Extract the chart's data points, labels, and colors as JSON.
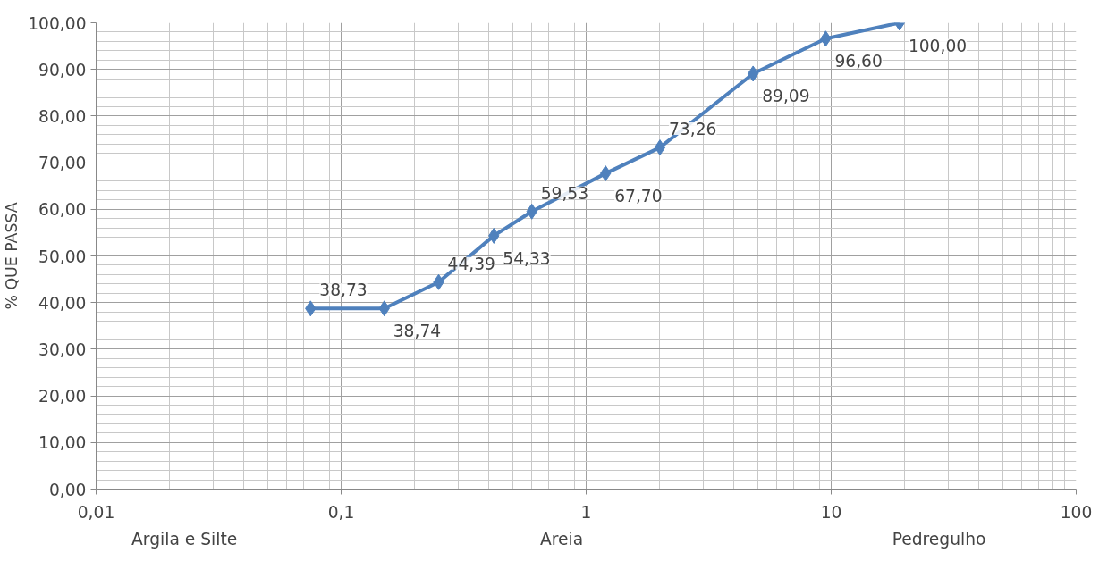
{
  "chart_data": {
    "type": "line",
    "ylabel": "% QUE PASSA",
    "x": [
      0.075,
      0.15,
      0.25,
      0.42,
      0.6,
      1.2,
      2.0,
      4.8,
      9.5,
      19
    ],
    "series": [
      {
        "color": "#4f81bd",
        "values": [
          38.73,
          38.74,
          44.39,
          54.33,
          59.53,
          67.7,
          73.26,
          89.09,
          96.6,
          100.0
        ],
        "value_labels": [
          "38,73",
          "38,74",
          "44,39",
          "54,33",
          "59,53",
          "67,70",
          "73,26",
          "89,09",
          "96,60",
          "100,00"
        ]
      }
    ],
    "log": "x",
    "xlim": [
      0.01,
      100
    ],
    "xticks": [
      {
        "value": 0.01,
        "label": "0,01"
      },
      {
        "value": 0.1,
        "label": "0,1"
      },
      1,
      10,
      100
    ],
    "ylim": [
      0,
      100
    ],
    "yticks": [
      {
        "value": 0,
        "label": "0,00"
      },
      {
        "value": 10,
        "label": "10,00"
      },
      {
        "value": 20,
        "label": "20,00"
      },
      {
        "value": 30,
        "label": "30,00"
      },
      {
        "value": 40,
        "label": "40,00"
      },
      {
        "value": 50,
        "label": "50,00"
      },
      {
        "value": 60,
        "label": "60,00"
      },
      {
        "value": 70,
        "label": "70,00"
      },
      {
        "value": 80,
        "label": "80,00"
      },
      {
        "value": 90,
        "label": "90,00"
      },
      {
        "value": 100,
        "label": "100,00"
      }
    ],
    "grid": true,
    "marker": "diamond",
    "line_style": "solid",
    "annotations": [
      "Argila e Silte",
      "Areia",
      "Pedregulho"
    ]
  }
}
